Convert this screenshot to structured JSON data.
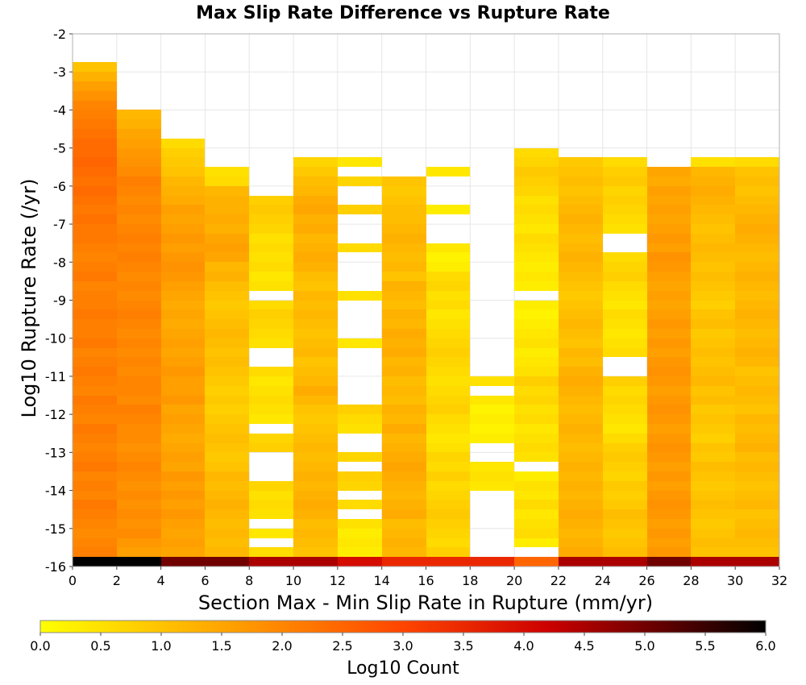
{
  "chart_data": {
    "type": "heatmap",
    "title": "Max Slip Rate Difference vs Rupture Rate",
    "xlabel": "Section Max - Min Slip Rate in Rupture (mm/yr)",
    "ylabel": "Log10 Rupture Rate (/yr)",
    "xlim": [
      0,
      32
    ],
    "ylim": [
      -16,
      -2
    ],
    "x_ticks": [
      0,
      2,
      4,
      6,
      8,
      10,
      12,
      14,
      16,
      18,
      20,
      22,
      24,
      26,
      28,
      30,
      32
    ],
    "y_ticks": [
      -2,
      -3,
      -4,
      -5,
      -6,
      -7,
      -8,
      -9,
      -10,
      -11,
      -12,
      -13,
      -14,
      -15,
      -16
    ],
    "x_bin_width": 2,
    "y_bin_height": 0.25,
    "grid": true,
    "colorbar": {
      "label": "Log10 Count",
      "range": [
        0,
        6
      ],
      "ticks": [
        "0.0",
        "0.5",
        "1.0",
        "1.5",
        "2.0",
        "2.5",
        "3.0",
        "3.5",
        "4.0",
        "4.5",
        "5.0",
        "5.5",
        "6.0"
      ],
      "colors": [
        "#ffff00",
        "#ffa500",
        "#ff4500",
        "#cc0000",
        "#000000"
      ]
    },
    "columns": [
      {
        "x": 1,
        "values": [
          6.0,
          2.1,
          2.0,
          1.9,
          2.0,
          2.1,
          2.2,
          2.0,
          2.1,
          2.0,
          2.2,
          2.1,
          2.0,
          2.1,
          2.2,
          2.0,
          2.1,
          2.2,
          2.0,
          2.1,
          2.2,
          2.1,
          2.0,
          2.2,
          2.1,
          2.1,
          2.2,
          2.1,
          2.1,
          2.0,
          2.2,
          2.1,
          2.0,
          2.1,
          2.2,
          2.2,
          2.3,
          2.2,
          2.3,
          2.4,
          2.3,
          2.4,
          2.5,
          2.4,
          2.4,
          2.3,
          2.2,
          2.1,
          2.0,
          1.8,
          1.6,
          1.3,
          1.0
        ]
      },
      {
        "x": 3,
        "values": [
          6.0,
          1.6,
          1.7,
          1.9,
          1.8,
          1.9,
          1.8,
          1.9,
          1.8,
          1.9,
          2.0,
          1.9,
          1.8,
          1.9,
          1.9,
          2.0,
          2.1,
          1.9,
          2.0,
          2.0,
          1.9,
          2.0,
          1.9,
          2.0,
          1.9,
          2.0,
          2.1,
          2.0,
          1.9,
          2.0,
          1.9,
          2.0,
          2.1,
          2.0,
          2.1,
          2.0,
          1.9,
          2.0,
          1.9,
          2.0,
          2.1,
          1.9,
          1.8,
          1.7,
          1.6,
          1.5,
          1.3,
          1.2
        ]
      },
      {
        "x": 5,
        "values": [
          5.0,
          1.5,
          1.6,
          1.5,
          1.6,
          1.7,
          1.6,
          1.7,
          1.6,
          1.7,
          1.5,
          1.6,
          1.5,
          1.4,
          1.5,
          1.6,
          1.5,
          1.7,
          1.6,
          1.6,
          1.7,
          1.6,
          1.5,
          1.6,
          1.5,
          1.4,
          1.5,
          1.4,
          1.5,
          1.6,
          1.7,
          1.8,
          1.7,
          1.6,
          1.7,
          1.6,
          1.5,
          1.6,
          1.4,
          1.3,
          1.2,
          1.0,
          0.9,
          0.8,
          0.6
        ]
      },
      {
        "x": 7,
        "values": [
          5.0,
          1.2,
          1.1,
          1.2,
          1.1,
          1.2,
          1.3,
          1.2,
          1.1,
          1.2,
          1.0,
          0.9,
          1.0,
          1.1,
          1.0,
          0.9,
          0.8,
          0.9,
          0.8,
          0.9,
          1.0,
          1.1,
          1.0,
          1.1,
          1.2,
          1.1,
          1.0,
          0.9,
          1.0,
          1.1,
          1.3,
          1.2,
          1.5,
          1.6,
          1.5,
          1.3,
          1.4,
          1.3,
          1.3,
          1.2,
          0.6,
          0.5
        ]
      },
      {
        "x": 9,
        "values": [
          4.5,
          0.6,
          null,
          0.4,
          null,
          0.5,
          0.6,
          0.5,
          0.7,
          null,
          null,
          null,
          0.8,
          0.7,
          null,
          0.4,
          0.5,
          0.6,
          0.5,
          0.4,
          0.6,
          null,
          null,
          0.5,
          0.6,
          0.7,
          0.8,
          0.6,
          null,
          0.5,
          0.4,
          0.6,
          0.5,
          0.6,
          0.5,
          0.7,
          0.8,
          0.9,
          0.8
        ]
      },
      {
        "x": 11,
        "values": [
          4.5,
          1.0,
          1.1,
          1.2,
          1.1,
          1.3,
          1.4,
          1.3,
          1.2,
          1.3,
          1.2,
          1.1,
          1.2,
          1.1,
          1.0,
          0.9,
          1.0,
          1.2,
          1.4,
          1.2,
          1.1,
          1.0,
          1.2,
          1.1,
          1.0,
          1.1,
          1.2,
          1.1,
          1.2,
          1.0,
          1.1,
          1.3,
          1.4,
          1.3,
          1.2,
          1.4,
          1.3,
          1.5,
          1.4,
          1.2,
          1.1,
          0.9,
          0.7
        ]
      },
      {
        "x": 13,
        "values": [
          4.0,
          0.3,
          0.4,
          0.3,
          0.5,
          null,
          0.6,
          null,
          0.7,
          0.8,
          null,
          0.7,
          null,
          null,
          0.5,
          0.6,
          0.8,
          null,
          null,
          null,
          null,
          null,
          null,
          0.4,
          null,
          null,
          null,
          null,
          0.5,
          null,
          null,
          null,
          null,
          0.6,
          null,
          null,
          null,
          0.8,
          null,
          null,
          0.7,
          null,
          0.4
        ]
      },
      {
        "x": 15,
        "values": [
          3.5,
          1.2,
          1.3,
          1.2,
          1.1,
          1.4,
          1.3,
          1.2,
          1.3,
          1.4,
          1.5,
          1.4,
          1.3,
          1.2,
          1.4,
          1.2,
          1.3,
          1.1,
          1.2,
          1.1,
          1.3,
          1.2,
          1.4,
          1.3,
          1.4,
          1.2,
          1.3,
          1.1,
          1.2,
          1.3,
          1.0,
          1.2,
          1.1,
          1.2,
          1.3,
          1.2,
          1.1,
          1.1,
          1.0,
          0.9,
          1.0
        ]
      },
      {
        "x": 17,
        "values": [
          3.5,
          0.8,
          0.6,
          0.7,
          0.8,
          0.9,
          0.8,
          0.7,
          0.6,
          0.8,
          0.6,
          0.7,
          0.5,
          0.4,
          0.5,
          0.6,
          0.8,
          0.7,
          0.6,
          0.5,
          0.6,
          0.7,
          0.8,
          0.7,
          0.6,
          0.5,
          0.4,
          0.6,
          0.5,
          0.7,
          0.6,
          0.3,
          0.2,
          0.4,
          null,
          null,
          null,
          0.3,
          null,
          null,
          null,
          0.4
        ]
      },
      {
        "x": 19,
        "values": [
          3.5,
          null,
          null,
          null,
          null,
          null,
          null,
          null,
          0.4,
          0.5,
          0.4,
          null,
          null,
          0.3,
          0.2,
          0.3,
          0.2,
          0.4,
          null,
          0.5
        ]
      },
      {
        "x": 21,
        "values": [
          2.5,
          null,
          0.3,
          0.6,
          0.5,
          0.4,
          0.6,
          0.4,
          0.5,
          0.3,
          null,
          0.5,
          0.6,
          0.5,
          0.4,
          0.6,
          0.5,
          0.7,
          0.6,
          0.8,
          0.5,
          0.4,
          0.3,
          0.5,
          0.4,
          0.3,
          0.2,
          0.3,
          null,
          0.3,
          0.4,
          0.3,
          0.4,
          0.5,
          0.6,
          0.4,
          0.5,
          0.6,
          0.5,
          0.7,
          0.8,
          0.9,
          0.7,
          0.6
        ]
      },
      {
        "x": 23,
        "values": [
          4.5,
          1.4,
          1.3,
          1.2,
          1.3,
          1.4,
          1.3,
          1.2,
          1.3,
          1.2,
          1.3,
          1.2,
          1.1,
          1.2,
          1.3,
          1.2,
          1.1,
          1.2,
          1.3,
          1.4,
          1.3,
          1.1,
          1.2,
          1.0,
          1.1,
          1.2,
          1.1,
          1.0,
          0.9,
          1.0,
          1.1,
          1.2,
          1.3,
          1.2,
          1.1,
          1.2,
          1.3,
          1.2,
          1.1,
          1.0,
          1.1,
          1.0,
          0.9
        ]
      },
      {
        "x": 25,
        "values": [
          4.5,
          1.1,
          1.0,
          0.9,
          1.0,
          1.1,
          0.9,
          0.8,
          0.9,
          0.7,
          0.8,
          0.9,
          0.8,
          0.6,
          0.4,
          0.5,
          0.6,
          0.7,
          0.6,
          0.8,
          null,
          null,
          0.6,
          0.5,
          0.4,
          0.5,
          0.6,
          0.4,
          0.5,
          0.6,
          0.8,
          0.7,
          0.6,
          null,
          null,
          0.5,
          0.6,
          0.7,
          0.8,
          0.7,
          0.9,
          0.8,
          0.6
        ]
      },
      {
        "x": 27,
        "values": [
          5.0,
          1.7,
          1.6,
          1.7,
          1.6,
          1.7,
          1.8,
          1.7,
          1.6,
          1.7,
          1.6,
          1.7,
          1.8,
          1.7,
          1.6,
          1.7,
          1.8,
          1.7,
          1.6,
          1.7,
          1.8,
          1.7,
          1.6,
          1.7,
          1.6,
          1.7,
          1.6,
          1.5,
          1.6,
          1.5,
          1.6,
          1.7,
          1.8,
          1.6,
          1.7,
          1.6,
          1.5,
          1.6,
          1.5,
          1.6,
          1.4,
          1.5
        ]
      },
      {
        "x": 29,
        "values": [
          4.5,
          1.0,
          1.1,
          1.0,
          0.9,
          1.0,
          1.1,
          1.0,
          0.9,
          1.0,
          1.1,
          0.9,
          1.0,
          0.8,
          0.9,
          1.0,
          0.9,
          1.1,
          1.0,
          1.2,
          1.1,
          1.0,
          1.1,
          1.0,
          0.9,
          1.1,
          1.0,
          0.8,
          0.9,
          1.0,
          1.1,
          1.0,
          1.1,
          1.2,
          1.1,
          1.0,
          1.1,
          1.2,
          1.3,
          1.4,
          1.3,
          1.2,
          0.5
        ]
      },
      {
        "x": 31,
        "values": [
          4.5,
          1.0,
          1.1,
          1.2,
          1.1,
          1.0,
          1.2,
          1.1,
          1.0,
          1.1,
          1.2,
          1.1,
          1.3,
          1.2,
          1.1,
          1.2,
          1.0,
          1.1,
          1.2,
          1.1,
          1.0,
          1.2,
          1.3,
          1.2,
          1.1,
          1.2,
          1.3,
          1.2,
          1.1,
          1.2,
          1.3,
          1.2,
          1.1,
          1.2,
          1.3,
          1.4,
          1.3,
          1.2,
          1.1,
          1.0,
          1.1,
          1.0,
          0.6
        ]
      }
    ]
  }
}
